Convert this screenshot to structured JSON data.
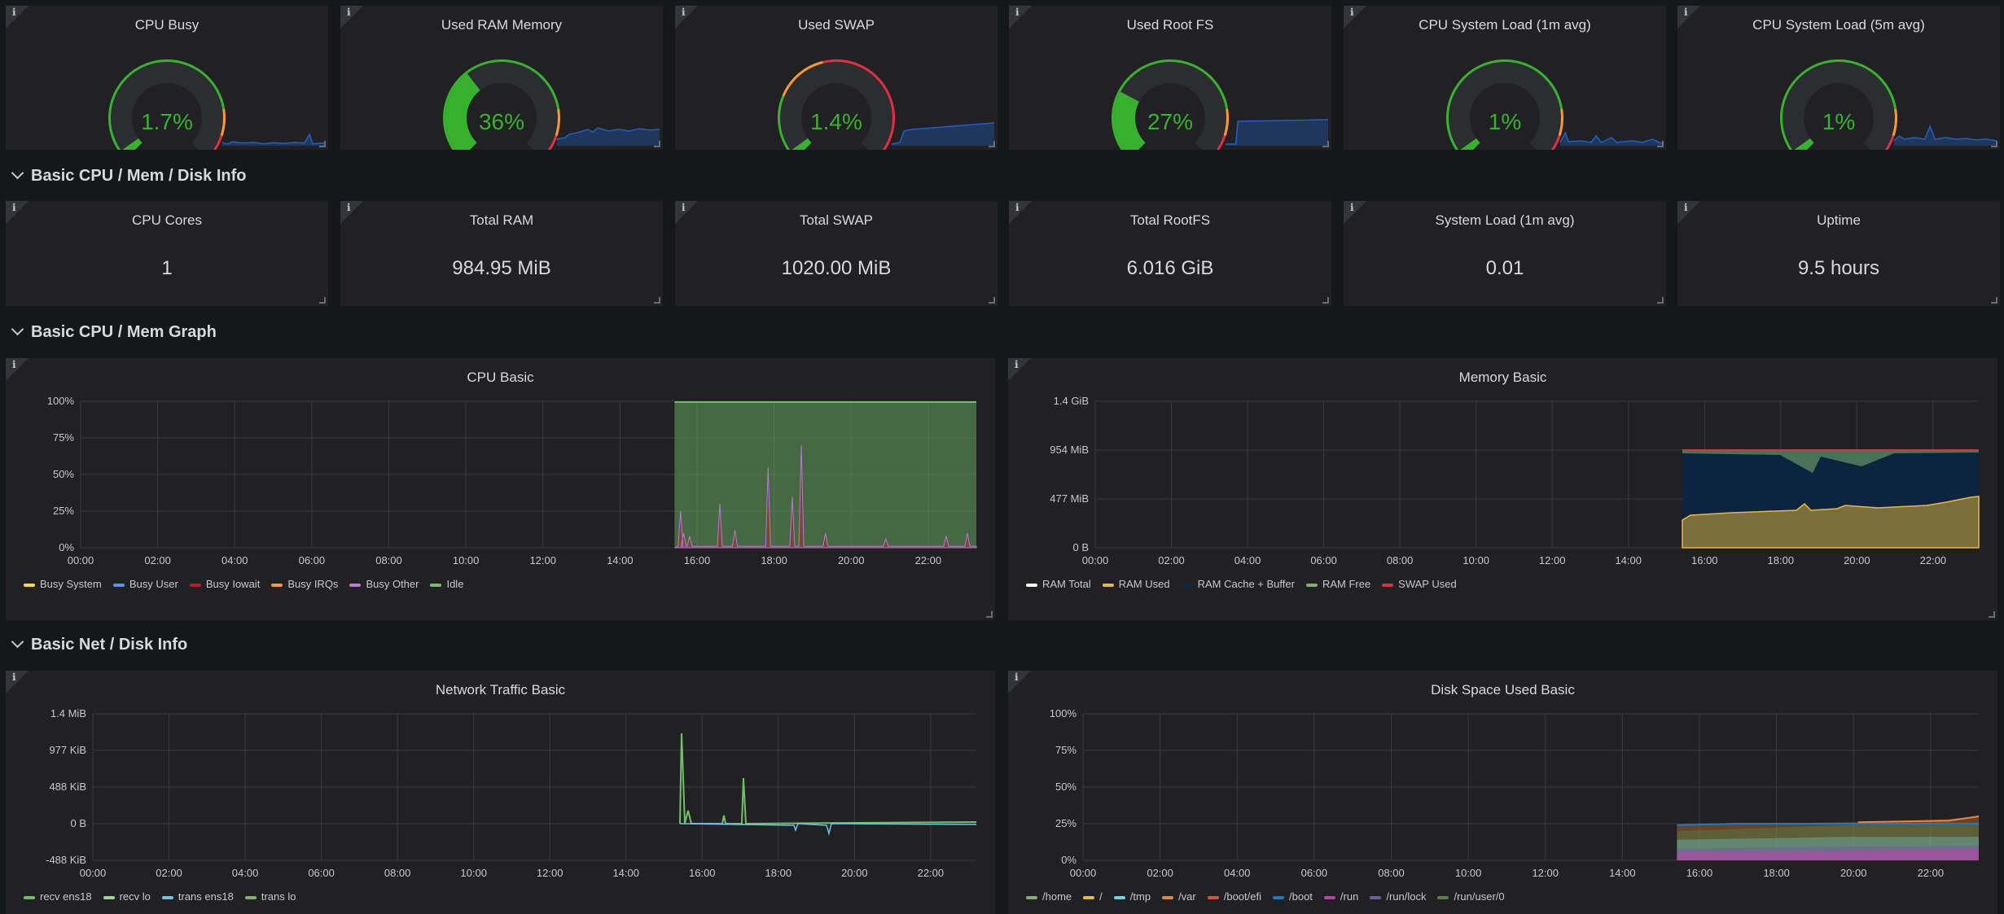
{
  "colors": {
    "green": "#37b22e",
    "orange": "#ff9830",
    "red": "#e02f44",
    "blue": "#5794f2",
    "grid": "#3a3b3e"
  },
  "gauges": [
    {
      "title": "CPU Busy",
      "value": "1.7%",
      "pct": 0.017,
      "spark": "cpu"
    },
    {
      "title": "Used RAM Memory",
      "value": "36%",
      "pct": 0.36,
      "spark": "ram"
    },
    {
      "title": "Used SWAP",
      "value": "1.4%",
      "pct": 0.014,
      "spark": "swap"
    },
    {
      "title": "Used Root FS",
      "value": "27%",
      "pct": 0.27,
      "spark": "fs"
    },
    {
      "title": "CPU System Load (1m avg)",
      "value": "1%",
      "pct": 0.01,
      "spark": "load1"
    },
    {
      "title": "CPU System Load (5m avg)",
      "value": "1%",
      "pct": 0.01,
      "spark": "load5"
    }
  ],
  "sections": [
    {
      "title": "Basic CPU / Mem / Disk Info"
    },
    {
      "title": "Basic CPU / Mem Graph"
    },
    {
      "title": "Basic Net / Disk Info"
    }
  ],
  "stats": [
    {
      "title": "CPU Cores",
      "value": "1"
    },
    {
      "title": "Total RAM",
      "value": "984.95 MiB"
    },
    {
      "title": "Total SWAP",
      "value": "1020.00 MiB"
    },
    {
      "title": "Total RootFS",
      "value": "6.016 GiB"
    },
    {
      "title": "System Load (1m avg)",
      "value": "0.01"
    },
    {
      "title": "Uptime",
      "value": "9.5 hours"
    }
  ],
  "info_icon": "i",
  "chart_data": [
    {
      "type": "area",
      "title": "CPU Basic",
      "x": [
        "00:00",
        "02:00",
        "04:00",
        "06:00",
        "08:00",
        "10:00",
        "12:00",
        "14:00",
        "16:00",
        "18:00",
        "20:00",
        "22:00"
      ],
      "yticks": [
        "100%",
        "75%",
        "50%",
        "25%",
        "0%"
      ],
      "ylim": [
        0,
        100
      ],
      "data_start": "15:25",
      "series": [
        {
          "name": "Busy System",
          "color": "#fade2a"
        },
        {
          "name": "Busy User",
          "color": "#5794f2"
        },
        {
          "name": "Busy Iowait",
          "color": "#c4162a"
        },
        {
          "name": "Busy IRQs",
          "color": "#ff9830"
        },
        {
          "name": "Busy Other",
          "color": "#b877d9"
        },
        {
          "name": "Idle",
          "color": "#73bf69"
        }
      ]
    },
    {
      "type": "area",
      "title": "Memory Basic",
      "x": [
        "00:00",
        "02:00",
        "04:00",
        "06:00",
        "08:00",
        "10:00",
        "12:00",
        "14:00",
        "16:00",
        "18:00",
        "20:00",
        "22:00"
      ],
      "yticks": [
        "1.4 GiB",
        "954 MiB",
        "477 MiB",
        "0 B"
      ],
      "data_start": "15:25",
      "series": [
        {
          "name": "RAM Total",
          "color": "#ffffff"
        },
        {
          "name": "RAM Used",
          "color": "#eab839"
        },
        {
          "name": "RAM Cache + Buffer",
          "color": "#052b51"
        },
        {
          "name": "RAM Free",
          "color": "#7eb26d"
        },
        {
          "name": "SWAP Used",
          "color": "#e02f44"
        }
      ]
    },
    {
      "type": "line",
      "title": "Network Traffic Basic",
      "x": [
        "00:00",
        "02:00",
        "04:00",
        "06:00",
        "08:00",
        "10:00",
        "12:00",
        "14:00",
        "16:00",
        "18:00",
        "20:00",
        "22:00"
      ],
      "yticks": [
        "1.4 MiB",
        "977 KiB",
        "488 KiB",
        "0 B",
        "-488 KiB"
      ],
      "data_start": "15:25",
      "series": [
        {
          "name": "recv ens18",
          "color": "#73bf69"
        },
        {
          "name": "recv lo",
          "color": "#96d98d"
        },
        {
          "name": "trans ens18",
          "color": "#73bfe5"
        },
        {
          "name": "trans lo",
          "color": "#7eb26d"
        }
      ]
    },
    {
      "type": "area",
      "title": "Disk Space Used Basic",
      "x": [
        "00:00",
        "02:00",
        "04:00",
        "06:00",
        "08:00",
        "10:00",
        "12:00",
        "14:00",
        "16:00",
        "18:00",
        "20:00",
        "22:00"
      ],
      "yticks": [
        "100%",
        "75%",
        "50%",
        "25%",
        "0%"
      ],
      "ylim": [
        0,
        100
      ],
      "data_start": "15:25",
      "series": [
        {
          "name": "/home",
          "color": "#7eb26d"
        },
        {
          "name": "/",
          "color": "#eab839"
        },
        {
          "name": "/tmp",
          "color": "#6ed0e0"
        },
        {
          "name": "/var",
          "color": "#ef843c"
        },
        {
          "name": "/boot/efi",
          "color": "#e24d42"
        },
        {
          "name": "/boot",
          "color": "#1f78c1"
        },
        {
          "name": "/run",
          "color": "#ba43a9"
        },
        {
          "name": "/run/lock",
          "color": "#705da0"
        },
        {
          "name": "/run/user/0",
          "color": "#508642"
        }
      ]
    }
  ]
}
